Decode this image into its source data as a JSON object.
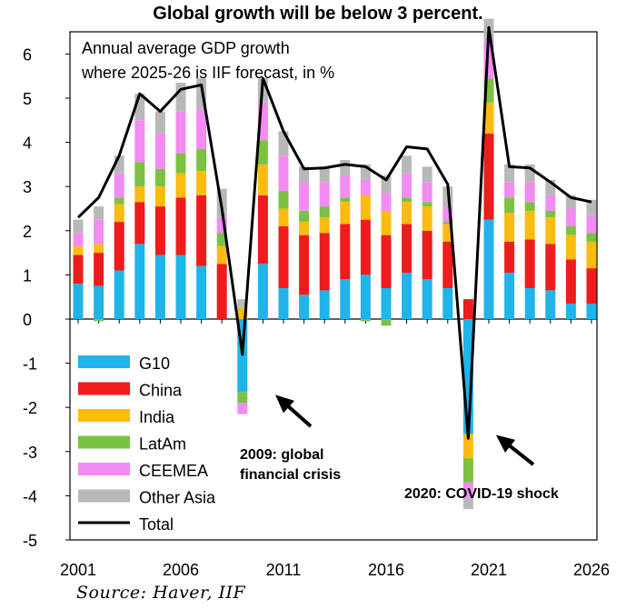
{
  "chart_data": {
    "type": "bar",
    "stacked": true,
    "title": "Global growth will be below 3 percent.",
    "subtitle_lines": [
      "Annual average GDP growth",
      "where 2025-26  is IIF forecast, in %"
    ],
    "source": "Source: Haver, IIF",
    "ylim": [
      -5,
      6.6
    ],
    "yticks": [
      -5,
      -4,
      -3,
      -2,
      -1,
      0,
      1,
      2,
      3,
      4,
      5,
      6
    ],
    "xtick_labels": [
      {
        "year": 2001,
        "label": "2001"
      },
      {
        "year": 2006,
        "label": "2006"
      },
      {
        "year": 2011,
        "label": "2011"
      },
      {
        "year": 2016,
        "label": "2016"
      },
      {
        "year": 2021,
        "label": "2021"
      },
      {
        "year": 2026,
        "label": "2026"
      }
    ],
    "years": [
      2001,
      2002,
      2003,
      2004,
      2005,
      2006,
      2007,
      2008,
      2009,
      2010,
      2011,
      2012,
      2013,
      2014,
      2015,
      2016,
      2017,
      2018,
      2019,
      2020,
      2021,
      2022,
      2023,
      2024,
      2025,
      2026
    ],
    "series": [
      {
        "name": "G10",
        "color": "#1fb4ea",
        "values": [
          0.8,
          0.75,
          1.1,
          1.7,
          1.45,
          1.45,
          1.2,
          0.0,
          -1.65,
          1.25,
          0.7,
          0.55,
          0.65,
          0.9,
          1.0,
          0.7,
          1.05,
          0.9,
          0.7,
          -2.6,
          2.25,
          1.05,
          0.7,
          0.65,
          0.35,
          0.35
        ]
      },
      {
        "name": "China",
        "color": "#ee1c1c",
        "values": [
          0.65,
          0.75,
          1.1,
          0.95,
          1.1,
          1.3,
          1.6,
          1.25,
          0.0,
          1.55,
          1.4,
          1.35,
          1.3,
          1.25,
          1.25,
          1.2,
          1.1,
          1.1,
          1.05,
          0.45,
          1.95,
          0.7,
          1.1,
          1.05,
          1.0,
          0.8
        ]
      },
      {
        "name": "India",
        "color": "#fbbb11",
        "values": [
          0.2,
          0.2,
          0.4,
          0.35,
          0.45,
          0.55,
          0.55,
          0.4,
          0.25,
          0.7,
          0.4,
          0.3,
          0.35,
          0.5,
          0.55,
          0.55,
          0.5,
          0.55,
          0.4,
          -0.55,
          0.7,
          0.65,
          0.65,
          0.6,
          0.55,
          0.6
        ]
      },
      {
        "name": "LatAm",
        "color": "#7cc242",
        "values": [
          0.0,
          -0.05,
          0.15,
          0.55,
          0.4,
          0.45,
          0.5,
          0.3,
          -0.25,
          0.55,
          0.4,
          0.25,
          0.25,
          0.1,
          -0.05,
          -0.15,
          0.1,
          0.1,
          0.05,
          -0.55,
          0.55,
          0.35,
          0.2,
          0.15,
          0.2,
          0.2
        ]
      },
      {
        "name": "CEEMEA",
        "color": "#f38cf2",
        "values": [
          0.3,
          0.55,
          0.55,
          0.95,
          0.8,
          0.95,
          0.9,
          0.35,
          -0.25,
          0.85,
          0.8,
          0.65,
          0.55,
          0.5,
          0.35,
          0.4,
          0.55,
          0.45,
          0.35,
          -0.35,
          0.85,
          0.35,
          0.45,
          0.35,
          0.4,
          0.4
        ]
      },
      {
        "name": "Other Asia",
        "color": "#b8b8b8",
        "values": [
          0.3,
          0.3,
          0.4,
          0.6,
          0.5,
          0.65,
          0.7,
          0.65,
          0.2,
          0.55,
          0.55,
          0.35,
          0.35,
          0.35,
          0.35,
          0.4,
          0.4,
          0.35,
          0.45,
          -0.25,
          0.5,
          0.4,
          0.4,
          0.35,
          0.3,
          0.35
        ]
      }
    ],
    "total": {
      "name": "Total",
      "color": "#000000",
      "values": [
        2.3,
        2.75,
        3.7,
        5.1,
        4.7,
        5.2,
        5.3,
        2.5,
        -0.8,
        5.45,
        4.25,
        3.4,
        3.42,
        3.5,
        3.45,
        3.15,
        3.9,
        3.85,
        3.05,
        -2.7,
        6.6,
        3.45,
        3.42,
        3.1,
        2.75,
        2.65
      ]
    },
    "annotations": [
      {
        "text_lines": [
          "2009: global",
          "financial crisis"
        ]
      },
      {
        "text_lines": [
          "2020: COVID-19 shock"
        ]
      }
    ]
  }
}
